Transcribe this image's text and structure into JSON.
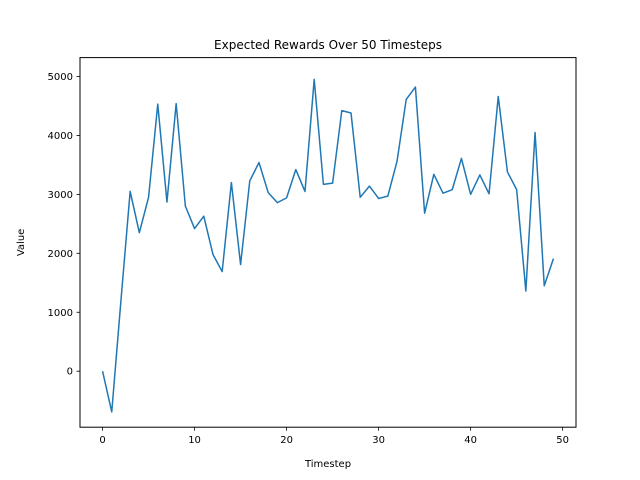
{
  "chart_data": {
    "type": "line",
    "title": "Expected Rewards Over 50 Timesteps",
    "xlabel": "Timestep",
    "ylabel": "Value",
    "xlim": [
      -2.45,
      51.45
    ],
    "ylim": [
      -950,
      5320
    ],
    "xticks": [
      0,
      10,
      20,
      30,
      40,
      50
    ],
    "yticks": [
      0,
      1000,
      2000,
      3000,
      4000,
      5000
    ],
    "grid": false,
    "line_color": "#1f77b4",
    "x": [
      0,
      1,
      2,
      3,
      4,
      5,
      6,
      7,
      8,
      9,
      10,
      11,
      12,
      13,
      14,
      15,
      16,
      17,
      18,
      19,
      20,
      21,
      22,
      23,
      24,
      25,
      26,
      27,
      28,
      29,
      30,
      31,
      32,
      33,
      34,
      35,
      36,
      37,
      38,
      39,
      40,
      41,
      42,
      43,
      44,
      45,
      46,
      47,
      48,
      49
    ],
    "values": [
      0,
      -690,
      1200,
      3050,
      2350,
      2950,
      4530,
      2870,
      4540,
      2800,
      2420,
      2630,
      1980,
      1690,
      3200,
      1810,
      3230,
      3540,
      3030,
      2860,
      2940,
      3420,
      3050,
      4950,
      3170,
      3190,
      4420,
      4380,
      2950,
      3140,
      2930,
      2970,
      3560,
      4610,
      4820,
      2680,
      3340,
      3020,
      3080,
      3610,
      3000,
      3330,
      3010,
      4660,
      3380,
      3080,
      1360,
      4050,
      1450,
      1910
    ]
  }
}
